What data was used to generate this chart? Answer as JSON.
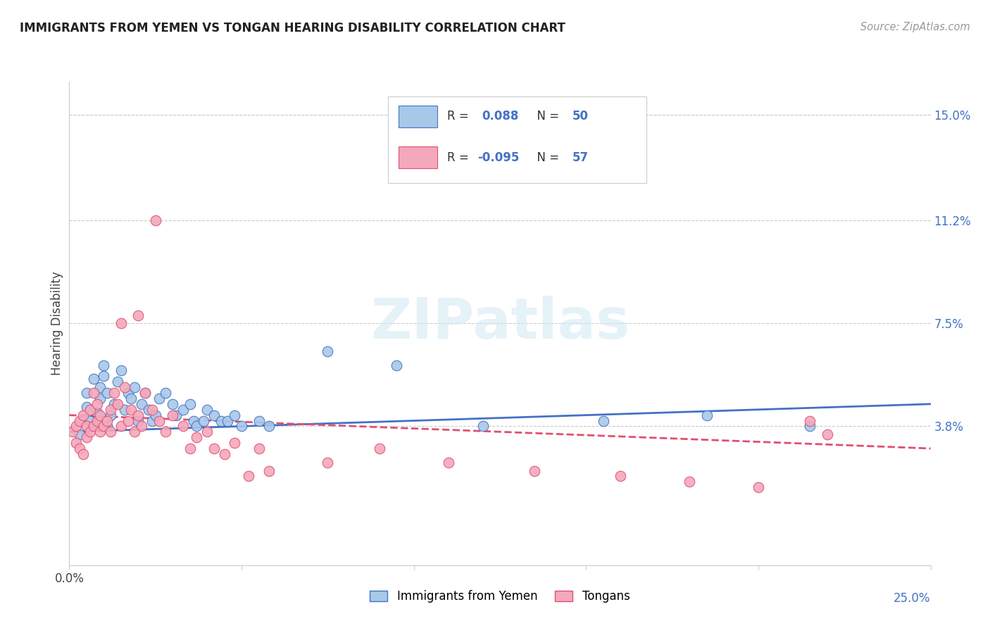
{
  "title": "IMMIGRANTS FROM YEMEN VS TONGAN HEARING DISABILITY CORRELATION CHART",
  "source": "Source: ZipAtlas.com",
  "ylabel": "Hearing Disability",
  "xlim": [
    0.0,
    0.25
  ],
  "ylim": [
    -0.012,
    0.162
  ],
  "color_yemen": "#a8c8e8",
  "color_tongan": "#f4a8bc",
  "color_blue": "#4472c4",
  "color_pink": "#e05070",
  "color_grid": "#cccccc",
  "watermark": "ZIPatlas",
  "grid_yticks": [
    0.038,
    0.075,
    0.112,
    0.15
  ],
  "ytick_labels": [
    "3.8%",
    "7.5%",
    "11.2%",
    "15.0%"
  ],
  "scatter_yemen_x": [
    0.003,
    0.005,
    0.005,
    0.006,
    0.007,
    0.007,
    0.008,
    0.009,
    0.009,
    0.01,
    0.01,
    0.011,
    0.011,
    0.012,
    0.013,
    0.014,
    0.015,
    0.016,
    0.017,
    0.018,
    0.019,
    0.02,
    0.021,
    0.022,
    0.023,
    0.024,
    0.025,
    0.026,
    0.028,
    0.03,
    0.031,
    0.033,
    0.035,
    0.036,
    0.037,
    0.039,
    0.04,
    0.042,
    0.044,
    0.046,
    0.048,
    0.05,
    0.055,
    0.058,
    0.075,
    0.095,
    0.12,
    0.155,
    0.185,
    0.215
  ],
  "scatter_yemen_y": [
    0.035,
    0.05,
    0.045,
    0.04,
    0.038,
    0.055,
    0.043,
    0.048,
    0.052,
    0.056,
    0.06,
    0.05,
    0.038,
    0.042,
    0.046,
    0.054,
    0.058,
    0.044,
    0.05,
    0.048,
    0.052,
    0.04,
    0.046,
    0.05,
    0.044,
    0.04,
    0.042,
    0.048,
    0.05,
    0.046,
    0.042,
    0.044,
    0.046,
    0.04,
    0.038,
    0.04,
    0.044,
    0.042,
    0.04,
    0.04,
    0.042,
    0.038,
    0.04,
    0.038,
    0.065,
    0.06,
    0.038,
    0.04,
    0.042,
    0.038
  ],
  "scatter_tongan_x": [
    0.001,
    0.002,
    0.002,
    0.003,
    0.003,
    0.004,
    0.004,
    0.005,
    0.005,
    0.006,
    0.006,
    0.007,
    0.007,
    0.008,
    0.008,
    0.009,
    0.009,
    0.01,
    0.011,
    0.012,
    0.012,
    0.013,
    0.014,
    0.015,
    0.016,
    0.017,
    0.018,
    0.019,
    0.02,
    0.021,
    0.022,
    0.024,
    0.026,
    0.028,
    0.03,
    0.033,
    0.035,
    0.037,
    0.04,
    0.042,
    0.045,
    0.048,
    0.052,
    0.055,
    0.058,
    0.075,
    0.09,
    0.11,
    0.135,
    0.16,
    0.18,
    0.2,
    0.215,
    0.22,
    0.015,
    0.02,
    0.025
  ],
  "scatter_tongan_y": [
    0.036,
    0.032,
    0.038,
    0.03,
    0.04,
    0.028,
    0.042,
    0.034,
    0.038,
    0.036,
    0.044,
    0.038,
    0.05,
    0.04,
    0.046,
    0.036,
    0.042,
    0.038,
    0.04,
    0.044,
    0.036,
    0.05,
    0.046,
    0.038,
    0.052,
    0.04,
    0.044,
    0.036,
    0.042,
    0.038,
    0.05,
    0.044,
    0.04,
    0.036,
    0.042,
    0.038,
    0.03,
    0.034,
    0.036,
    0.03,
    0.028,
    0.032,
    0.02,
    0.03,
    0.022,
    0.025,
    0.03,
    0.025,
    0.022,
    0.02,
    0.018,
    0.016,
    0.04,
    0.035,
    0.075,
    0.078,
    0.112
  ],
  "trendline_yemen": [
    0.0,
    0.25,
    0.036,
    0.046
  ],
  "trendline_tongan": [
    0.0,
    0.25,
    0.042,
    0.03
  ]
}
